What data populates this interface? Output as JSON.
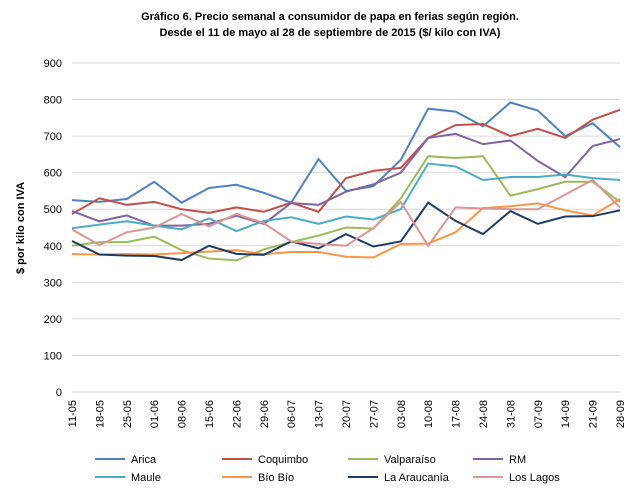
{
  "chart_data": {
    "type": "line",
    "title": "Gráfico 6. Precio semanal a consumidor de papa en ferias según región.",
    "subtitle": "Desde el 11 de mayo al 28 de septiembre de 2015  ($/ kilo con IVA)",
    "y_label": "$ por kilo con IVA",
    "categories": [
      "11-05",
      "18-05",
      "25-05",
      "01-06",
      "08-06",
      "15-06",
      "22-06",
      "29-06",
      "06-07",
      "13-07",
      "20-07",
      "27-07",
      "03-08",
      "10-08",
      "17-08",
      "24-08",
      "31-08",
      "07-09",
      "14-09",
      "21-09",
      "28-09"
    ],
    "series": [
      {
        "name": "Arica",
        "color": "#4f81bd",
        "values": [
          525,
          520,
          528,
          575,
          518,
          558,
          567,
          545,
          518,
          637,
          550,
          563,
          635,
          775,
          767,
          727,
          792,
          770,
          700,
          735,
          670
        ]
      },
      {
        "name": "Coquimbo",
        "color": "#c0504d",
        "values": [
          487,
          530,
          512,
          520,
          500,
          490,
          505,
          493,
          518,
          493,
          585,
          605,
          613,
          695,
          730,
          733,
          700,
          720,
          695,
          745,
          772
        ]
      },
      {
        "name": "Valparaíso",
        "color": "#9bbb59",
        "values": [
          400,
          410,
          410,
          425,
          388,
          365,
          360,
          390,
          410,
          428,
          450,
          447,
          530,
          645,
          640,
          645,
          537,
          555,
          575,
          575,
          520
        ]
      },
      {
        "name": "RM",
        "color": "#8064a2",
        "values": [
          495,
          467,
          483,
          455,
          455,
          460,
          482,
          460,
          517,
          512,
          548,
          568,
          600,
          695,
          706,
          678,
          688,
          632,
          588,
          673,
          692
        ]
      },
      {
        "name": "Maule",
        "color": "#4bacc6",
        "values": [
          448,
          458,
          467,
          455,
          445,
          475,
          440,
          468,
          478,
          460,
          480,
          472,
          500,
          625,
          617,
          580,
          588,
          588,
          595,
          585,
          580
        ]
      },
      {
        "name": "Bío Bío",
        "color": "#f79646",
        "values": [
          377,
          376,
          377,
          376,
          380,
          384,
          388,
          377,
          383,
          383,
          370,
          368,
          405,
          406,
          437,
          503,
          508,
          516,
          497,
          483,
          528
        ]
      },
      {
        "name": "La Araucanía",
        "color": "#1f3b63",
        "values": [
          413,
          376,
          373,
          372,
          361,
          400,
          378,
          375,
          412,
          393,
          432,
          398,
          412,
          518,
          468,
          432,
          495,
          460,
          480,
          481,
          497
        ]
      },
      {
        "name": "Los Lagos",
        "color": "#d99694",
        "values": [
          445,
          402,
          437,
          450,
          487,
          453,
          487,
          462,
          412,
          405,
          400,
          448,
          520,
          400,
          505,
          502,
          500,
          500,
          540,
          580,
          505
        ]
      }
    ],
    "ylim": [
      0,
      900
    ],
    "yticks": [
      0,
      100,
      200,
      300,
      400,
      500,
      600,
      700,
      800,
      900
    ],
    "grid": true,
    "legend": "bottom"
  }
}
